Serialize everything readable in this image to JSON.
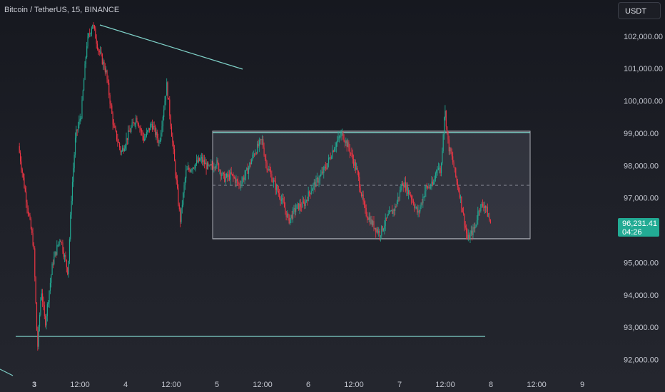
{
  "header": {
    "symbol_title": "Bitcoin / TetherUS, 15, BINANCE",
    "currency_button": "USDT"
  },
  "price_tag": {
    "price": "96,231.41",
    "countdown": "04:26"
  },
  "colors": {
    "up": "#22ab94",
    "down": "#f23645",
    "drawing": "#7fd1c8",
    "range_box": "rgba(90,93,105,0.35)",
    "axis_text": "#c3c6cf",
    "last_price_bg": "#22ab94"
  },
  "chart_data": {
    "type": "candlestick",
    "y_axis_side": "right",
    "ylim": [
      91550,
      102900
    ],
    "y_ticks": [
      {
        "value": 92000,
        "label": "92,000.00"
      },
      {
        "value": 93000,
        "label": "93,000.00"
      },
      {
        "value": 94000,
        "label": "94,000.00"
      },
      {
        "value": 95000,
        "label": "95,000.00"
      },
      {
        "value": 96000,
        "label": "96,000.00"
      },
      {
        "value": 97000,
        "label": "97,000.00"
      },
      {
        "value": 98000,
        "label": "98,000.00"
      },
      {
        "value": 99000,
        "label": "99,000.00"
      },
      {
        "value": 100000,
        "label": "100,000.00"
      },
      {
        "value": 101000,
        "label": "101,000.00"
      },
      {
        "value": 102000,
        "label": "102,000.00"
      }
    ],
    "x_ticks": [
      {
        "time": "3 00:00",
        "label": "3",
        "bold": true
      },
      {
        "time": "3 12:00",
        "label": "12:00"
      },
      {
        "time": "4 00:00",
        "label": "4"
      },
      {
        "time": "4 12:00",
        "label": "12:00"
      },
      {
        "time": "5 00:00",
        "label": "5"
      },
      {
        "time": "5 12:00",
        "label": "12:00"
      },
      {
        "time": "6 00:00",
        "label": "6"
      },
      {
        "time": "6 12:00",
        "label": "12:00"
      },
      {
        "time": "7 00:00",
        "label": "7"
      },
      {
        "time": "7 12:00",
        "label": "12:00"
      },
      {
        "time": "8 00:00",
        "label": "8"
      },
      {
        "time": "8 12:00",
        "label": "12:00"
      },
      {
        "time": "9 00:00",
        "label": "9"
      }
    ],
    "price_path": [
      [
        "2 20:00",
        98600
      ],
      [
        "2 22:00",
        97000
      ],
      [
        "3 00:00",
        95500
      ],
      [
        "3 01:00",
        92300
      ],
      [
        "3 02:00",
        94200
      ],
      [
        "3 03:00",
        93100
      ],
      [
        "3 05:00",
        95000
      ],
      [
        "3 07:00",
        95800
      ],
      [
        "3 09:00",
        94700
      ],
      [
        "3 10:00",
        97200
      ],
      [
        "3 11:00",
        98900
      ],
      [
        "3 12:30",
        99600
      ],
      [
        "3 14:00",
        101800
      ],
      [
        "3 15:30",
        102400
      ],
      [
        "3 17:00",
        101600
      ],
      [
        "3 19:00",
        100900
      ],
      [
        "3 21:00",
        99200
      ],
      [
        "3 23:00",
        98400
      ],
      [
        "4 01:00",
        99000
      ],
      [
        "4 03:00",
        99500
      ],
      [
        "4 05:00",
        98800
      ],
      [
        "4 07:00",
        99300
      ],
      [
        "4 09:00",
        98700
      ],
      [
        "4 11:00",
        100500
      ],
      [
        "4 12:30",
        98700
      ],
      [
        "4 14:00",
        96900
      ],
      [
        "4 14:30",
        96300
      ],
      [
        "4 16:00",
        97800
      ],
      [
        "4 18:00",
        98000
      ],
      [
        "4 20:00",
        98200
      ],
      [
        "4 22:00",
        97900
      ],
      [
        "5 00:00",
        98100
      ],
      [
        "5 02:00",
        97600
      ],
      [
        "5 04:00",
        97700
      ],
      [
        "5 06:00",
        97400
      ],
      [
        "5 08:00",
        97800
      ],
      [
        "5 10:00",
        98400
      ],
      [
        "5 12:00",
        98800
      ],
      [
        "5 13:00",
        98100
      ],
      [
        "5 15:00",
        97500
      ],
      [
        "5 17:00",
        97000
      ],
      [
        "5 19:00",
        96300
      ],
      [
        "5 21:00",
        96700
      ],
      [
        "5 23:00",
        96800
      ],
      [
        "6 01:00",
        97300
      ],
      [
        "6 03:00",
        97600
      ],
      [
        "6 05:00",
        98000
      ],
      [
        "6 07:00",
        98600
      ],
      [
        "6 09:00",
        99000
      ],
      [
        "6 11:00",
        98500
      ],
      [
        "6 13:00",
        97800
      ],
      [
        "6 15:00",
        96600
      ],
      [
        "6 17:00",
        96200
      ],
      [
        "6 19:00",
        95900
      ],
      [
        "6 21:00",
        96400
      ],
      [
        "6 23:00",
        96700
      ],
      [
        "7 01:00",
        97500
      ],
      [
        "7 03:00",
        97100
      ],
      [
        "7 05:00",
        96500
      ],
      [
        "7 07:00",
        97300
      ],
      [
        "7 09:00",
        97400
      ],
      [
        "7 10:00",
        98000
      ],
      [
        "7 11:00",
        97800
      ],
      [
        "7 12:00",
        99800
      ],
      [
        "7 13:00",
        98600
      ],
      [
        "7 14:00",
        98200
      ],
      [
        "7 15:00",
        97600
      ],
      [
        "7 16:00",
        97100
      ],
      [
        "7 18:00",
        95700
      ],
      [
        "7 20:00",
        96100
      ],
      [
        "7 21:00",
        96700
      ],
      [
        "7 22:30",
        96800
      ],
      [
        "8 00:00",
        96231
      ]
    ]
  }
}
